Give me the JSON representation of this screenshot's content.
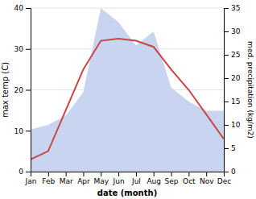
{
  "chart_data": {
    "type": "line",
    "xlabel": "date (month)",
    "ylabel": "max temp (C)",
    "y2label": "med. precipitation (kg/m2)",
    "categories": [
      "Jan",
      "Feb",
      "Mar",
      "Apr",
      "May",
      "Jun",
      "Jul",
      "Aug",
      "Sep",
      "Oct",
      "Nov",
      "Dec"
    ],
    "series": [
      {
        "type": "area",
        "axis": "y2",
        "color": "#c8d4f0",
        "values": [
          9.0,
          10.0,
          12.0,
          17.0,
          35.0,
          32.0,
          27.0,
          30.0,
          18.0,
          15.0,
          13.0,
          13.0
        ]
      },
      {
        "type": "line",
        "color": "#cc4444",
        "values": [
          3.0,
          5.0,
          15.0,
          25.0,
          32.0,
          32.5,
          32.0,
          30.5,
          25.0,
          20.0,
          14.0,
          8.0
        ]
      }
    ],
    "ylim": [
      0,
      40
    ],
    "yticks": [
      0,
      10,
      20,
      30,
      40
    ],
    "y2lim": [
      0,
      35
    ],
    "y2ticks": [
      0,
      5,
      10,
      15,
      20,
      25,
      30,
      35
    ],
    "grid": true
  }
}
